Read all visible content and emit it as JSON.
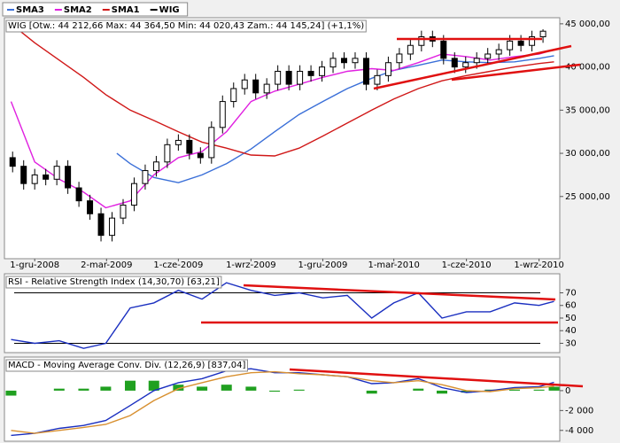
{
  "chart_data": [
    {
      "type": "candlestick",
      "title": "WIG [Otw.: 44 212,66  Max: 44 364,50  Min: 44 020,43  Zam.: 44 145,24] (+1,1%)",
      "xlim": [
        "2008-10-27",
        "2010-09-25"
      ],
      "xticks": [
        {
          "value": "2008-12-01",
          "label": "1-gru-2008"
        },
        {
          "value": "2009-03-02",
          "label": "2-mar-2009"
        },
        {
          "value": "2009-06-01",
          "label": "1-cze-2009"
        },
        {
          "value": "2009-09-01",
          "label": "1-wrz-2009"
        },
        {
          "value": "2009-12-01",
          "label": "1-gru-2009"
        },
        {
          "value": "2010-03-01",
          "label": "1-mar-2010"
        },
        {
          "value": "2010-06-01",
          "label": "1-cze-2010"
        },
        {
          "value": "2010-09-01",
          "label": "1-wrz-2010"
        }
      ],
      "ylim": [
        18000,
        45500
      ],
      "yticks": [
        {
          "value": 25000,
          "label": "25 000,00"
        },
        {
          "value": 30000,
          "label": "30 000,00"
        },
        {
          "value": 35000,
          "label": "35 000,00"
        },
        {
          "value": 40000,
          "label": "40 000,00"
        },
        {
          "value": 45000,
          "label": "45 000,00"
        }
      ],
      "x": [
        "2008-11-01",
        "2008-12-01",
        "2009-01-01",
        "2009-02-01",
        "2009-03-01",
        "2009-04-01",
        "2009-05-01",
        "2009-06-01",
        "2009-07-01",
        "2009-08-01",
        "2009-09-01",
        "2009-10-01",
        "2009-11-01",
        "2009-12-01",
        "2010-01-01",
        "2010-02-01",
        "2010-03-01",
        "2010-04-01",
        "2010-05-01",
        "2010-06-01",
        "2010-07-01",
        "2010-08-01",
        "2010-09-01",
        "2010-09-20"
      ],
      "series": [
        {
          "name": "SMA3",
          "color": "#3a6fd8",
          "x": [
            "2009-03-15",
            "2009-04-01",
            "2009-05-01",
            "2009-06-01",
            "2009-07-01",
            "2009-08-01",
            "2009-09-01",
            "2009-10-01",
            "2009-11-01",
            "2009-12-01",
            "2010-01-01",
            "2010-02-01",
            "2010-03-01",
            "2010-04-01",
            "2010-05-01",
            "2010-06-01",
            "2010-07-01",
            "2010-08-01",
            "2010-09-01",
            "2010-09-20"
          ],
          "values": [
            30000,
            28800,
            27200,
            26600,
            27500,
            28800,
            30500,
            32500,
            34500,
            36000,
            37500,
            38700,
            39600,
            40200,
            40800,
            40600,
            40500,
            40600,
            41000,
            41300
          ]
        },
        {
          "name": "SMA2",
          "color": "#e020e0",
          "values": [
            36000,
            29000,
            27000,
            25500,
            23700,
            24500,
            27500,
            29500,
            30200,
            32500,
            36000,
            37200,
            38000,
            38800,
            39500,
            39800,
            39600,
            40500,
            41500,
            41200,
            40800,
            41200,
            41500,
            42000
          ]
        },
        {
          "name": "SMA1",
          "color": "#d01818",
          "values": [
            45000,
            42800,
            40800,
            38800,
            36800,
            35000,
            33800,
            32500,
            31300,
            30600,
            29800,
            29700,
            30600,
            32000,
            33500,
            35000,
            36300,
            37500,
            38400,
            39000,
            39500,
            40000,
            40400,
            40600
          ]
        }
      ],
      "candles": {
        "name": "WIG",
        "color": "#000000",
        "x": [
          "2008-11-03",
          "2008-11-17",
          "2008-12-01",
          "2008-12-15",
          "2008-12-29",
          "2009-01-12",
          "2009-01-26",
          "2009-02-09",
          "2009-02-23",
          "2009-03-09",
          "2009-03-23",
          "2009-04-06",
          "2009-04-20",
          "2009-05-04",
          "2009-05-18",
          "2009-06-01",
          "2009-06-15",
          "2009-06-29",
          "2009-07-13",
          "2009-07-27",
          "2009-08-10",
          "2009-08-24",
          "2009-09-07",
          "2009-09-21",
          "2009-10-05",
          "2009-10-19",
          "2009-11-02",
          "2009-11-16",
          "2009-11-30",
          "2009-12-14",
          "2009-12-28",
          "2010-01-11",
          "2010-01-25",
          "2010-02-08",
          "2010-02-22",
          "2010-03-08",
          "2010-03-22",
          "2010-04-05",
          "2010-04-19",
          "2010-05-03",
          "2010-05-17",
          "2010-05-31",
          "2010-06-14",
          "2010-06-28",
          "2010-07-12",
          "2010-07-26",
          "2010-08-09",
          "2010-08-23",
          "2010-09-06"
        ],
        "open": [
          29500,
          28500,
          26500,
          27500,
          27000,
          28500,
          26000,
          24500,
          23000,
          20500,
          22500,
          24000,
          26500,
          28000,
          29000,
          31000,
          31500,
          30000,
          29500,
          33000,
          36000,
          37500,
          38500,
          37000,
          38000,
          39500,
          38000,
          39500,
          39000,
          40000,
          41000,
          40500,
          41000,
          38000,
          39000,
          40500,
          41500,
          42500,
          43500,
          43000,
          41000,
          40000,
          40500,
          41000,
          41500,
          42000,
          43000,
          42500,
          43500
        ],
        "high": [
          30200,
          29200,
          28200,
          28200,
          29200,
          29200,
          26700,
          25200,
          23700,
          23200,
          24700,
          27200,
          28700,
          29700,
          31700,
          32200,
          32200,
          30700,
          33700,
          36700,
          38200,
          39200,
          39200,
          38700,
          40200,
          40200,
          40200,
          40200,
          40700,
          41700,
          41700,
          41700,
          41700,
          39700,
          41200,
          42200,
          43200,
          44200,
          44200,
          43700,
          41700,
          41200,
          41700,
          42200,
          42700,
          43700,
          43700,
          44200,
          44365
        ],
        "low": [
          27800,
          25800,
          25800,
          26300,
          26300,
          25300,
          23800,
          22300,
          19800,
          19800,
          21800,
          23300,
          25800,
          27300,
          28300,
          30300,
          29300,
          28800,
          28800,
          32300,
          35300,
          36800,
          36300,
          36300,
          37300,
          37300,
          37300,
          38300,
          38300,
          39300,
          39800,
          39800,
          37300,
          37300,
          38300,
          39800,
          40800,
          41800,
          42300,
          40300,
          39300,
          39300,
          39800,
          40300,
          40800,
          41300,
          41800,
          41800,
          42800
        ],
        "close": [
          28500,
          26500,
          27500,
          27000,
          28500,
          26000,
          24500,
          23000,
          20500,
          22500,
          24000,
          26500,
          28000,
          29000,
          31000,
          31500,
          30000,
          29500,
          33000,
          36000,
          37500,
          38500,
          37000,
          38000,
          39500,
          38000,
          39500,
          39000,
          40000,
          41000,
          40500,
          41000,
          38000,
          39000,
          40500,
          41500,
          42500,
          43500,
          43000,
          41000,
          40000,
          40500,
          41000,
          41500,
          42000,
          43000,
          42500,
          43500,
          44145
        ]
      }
    },
    {
      "type": "line",
      "title": "RSI - Relative Strength Index (14,30,70) [63,21]",
      "xlim": [
        "2008-10-27",
        "2010-09-25"
      ],
      "ylim": [
        24,
        83
      ],
      "yticks": [
        30,
        40,
        50,
        60,
        70
      ],
      "levels": [
        30,
        70
      ],
      "x": [
        "2008-11-01",
        "2008-12-01",
        "2009-01-01",
        "2009-02-01",
        "2009-03-01",
        "2009-04-01",
        "2009-05-01",
        "2009-06-01",
        "2009-07-01",
        "2009-08-01",
        "2009-09-01",
        "2009-10-01",
        "2009-11-01",
        "2009-12-01",
        "2010-01-01",
        "2010-02-01",
        "2010-03-01",
        "2010-04-01",
        "2010-05-01",
        "2010-06-01",
        "2010-07-01",
        "2010-08-01",
        "2010-09-01",
        "2010-09-20"
      ],
      "series": [
        {
          "name": "RSI",
          "color": "#1a2fc0",
          "values": [
            33,
            30,
            32,
            26,
            30,
            58,
            62,
            72,
            65,
            78,
            72,
            68,
            70,
            66,
            68,
            50,
            62,
            70,
            50,
            55,
            55,
            62,
            60,
            63.21
          ]
        }
      ]
    },
    {
      "type": "macd",
      "title": "MACD - Moving Average Conv. Div. (12,26,9) [837,04]",
      "xlim": [
        "2008-10-27",
        "2010-09-25"
      ],
      "ylim": [
        -5000,
        3200
      ],
      "yticks": [
        {
          "value": -4000,
          "label": "-4 000"
        },
        {
          "value": -2000,
          "label": "-2 000"
        },
        0
      ],
      "x": [
        "2008-11-01",
        "2008-12-01",
        "2009-01-01",
        "2009-02-01",
        "2009-03-01",
        "2009-04-01",
        "2009-05-01",
        "2009-06-01",
        "2009-07-01",
        "2009-08-01",
        "2009-09-01",
        "2009-10-01",
        "2009-11-01",
        "2009-12-01",
        "2010-01-01",
        "2010-02-01",
        "2010-03-01",
        "2010-04-01",
        "2010-05-01",
        "2010-06-01",
        "2010-07-01",
        "2010-08-01",
        "2010-09-01",
        "2010-09-20"
      ],
      "histogram": {
        "color": "#20a020",
        "values": [
          -500,
          0,
          200,
          200,
          400,
          1000,
          1000,
          600,
          400,
          600,
          400,
          -100,
          100,
          0,
          0,
          -300,
          0,
          200,
          -300,
          -200,
          100,
          100,
          100,
          387
        ]
      },
      "series": [
        {
          "name": "MACD",
          "color": "#1a2fc0",
          "values": [
            -4500,
            -4300,
            -3800,
            -3500,
            -3000,
            -1500,
            0,
            800,
            1200,
            2000,
            2200,
            1800,
            1800,
            1600,
            1400,
            700,
            800,
            1200,
            300,
            -200,
            0,
            300,
            400,
            837
          ]
        },
        {
          "name": "Signal",
          "color": "#d89030",
          "values": [
            -4000,
            -4300,
            -4000,
            -3700,
            -3400,
            -2500,
            -1000,
            200,
            800,
            1400,
            1800,
            1900,
            1700,
            1600,
            1400,
            1000,
            800,
            1000,
            600,
            0,
            -100,
            200,
            300,
            450
          ]
        }
      ]
    }
  ]
}
